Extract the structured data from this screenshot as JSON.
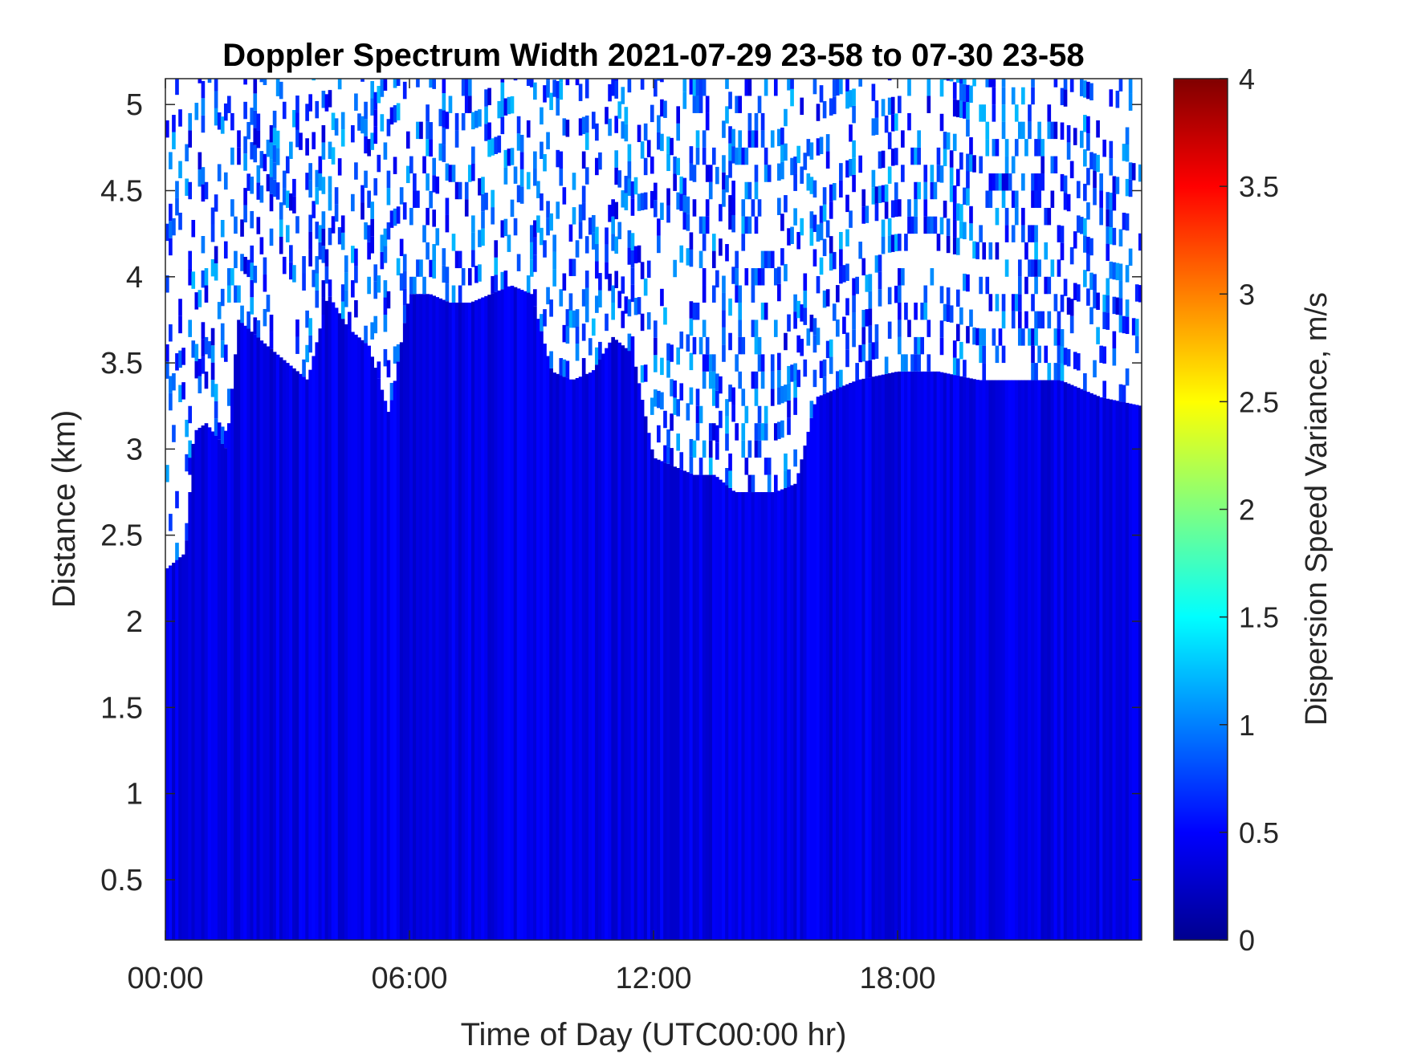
{
  "chart_data": {
    "type": "heatmap",
    "title": "Doppler Spectrum Width 2021-07-29 23-58 to 07-30 23-58",
    "xlabel": "Time of Day (UTC00:00 hr)",
    "ylabel": "Distance (km)",
    "x_ticks": [
      "00:00",
      "06:00",
      "12:00",
      "18:00"
    ],
    "x_tick_values_hr": [
      0,
      6,
      12,
      18
    ],
    "xlim_hr": [
      0,
      24
    ],
    "y_ticks": [
      "0.5",
      "1",
      "1.5",
      "2",
      "2.5",
      "3",
      "3.5",
      "4",
      "4.5",
      "5"
    ],
    "y_tick_values_km": [
      0.5,
      1,
      1.5,
      2,
      2.5,
      3,
      3.5,
      4,
      4.5,
      5
    ],
    "ylim_km": [
      0.15,
      5.15
    ],
    "colorbar": {
      "label": "Dispersion Speed Variance, m/s",
      "ticks": [
        "0",
        "0.5",
        "1",
        "1.5",
        "2",
        "2.5",
        "3",
        "3.5",
        "4"
      ],
      "tick_values": [
        0,
        0.5,
        1,
        1.5,
        2,
        2.5,
        3,
        3.5,
        4
      ],
      "range": [
        0,
        4
      ],
      "colormap": "jet"
    },
    "grid": false,
    "signal_top_km": [
      [
        0.0,
        2.3
      ],
      [
        0.5,
        2.4
      ],
      [
        0.7,
        3.1
      ],
      [
        1.0,
        3.15
      ],
      [
        1.5,
        3.0
      ],
      [
        1.8,
        3.75
      ],
      [
        2.5,
        3.6
      ],
      [
        3.0,
        3.5
      ],
      [
        3.5,
        3.4
      ],
      [
        4.0,
        3.9
      ],
      [
        4.5,
        3.7
      ],
      [
        5.0,
        3.6
      ],
      [
        5.5,
        3.2
      ],
      [
        6.0,
        3.9
      ],
      [
        6.5,
        3.9
      ],
      [
        7.0,
        3.85
      ],
      [
        7.5,
        3.85
      ],
      [
        8.0,
        3.9
      ],
      [
        8.5,
        3.95
      ],
      [
        9.0,
        3.9
      ],
      [
        9.5,
        3.45
      ],
      [
        10.0,
        3.4
      ],
      [
        10.5,
        3.45
      ],
      [
        11.0,
        3.65
      ],
      [
        11.5,
        3.55
      ],
      [
        12.0,
        2.95
      ],
      [
        12.5,
        2.9
      ],
      [
        13.0,
        2.85
      ],
      [
        13.5,
        2.85
      ],
      [
        14.0,
        2.75
      ],
      [
        15.0,
        2.75
      ],
      [
        15.5,
        2.8
      ],
      [
        16.0,
        3.3
      ],
      [
        17.0,
        3.4
      ],
      [
        18.0,
        3.45
      ],
      [
        19.0,
        3.45
      ],
      [
        20.0,
        3.4
      ],
      [
        21.0,
        3.4
      ],
      [
        22.0,
        3.4
      ],
      [
        23.0,
        3.3
      ],
      [
        24.0,
        3.25
      ]
    ],
    "typical_value_in_signal": 0.4,
    "typical_value_above_signal": 0.7
  }
}
